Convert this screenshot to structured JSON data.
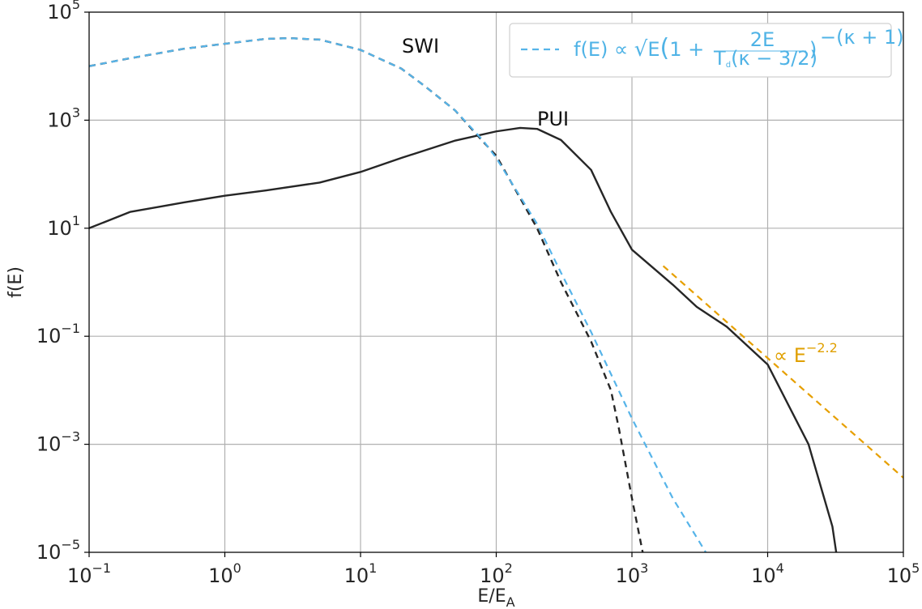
{
  "chart_data": {
    "type": "line",
    "title": "",
    "xlabel": "E/E",
    "xlabel_sub": "A",
    "ylabel": "f(E)",
    "xscale": "log",
    "yscale": "log",
    "xlim": [
      0.1,
      100000
    ],
    "ylim": [
      1e-05,
      100000
    ],
    "grid": true,
    "x_ticks": [
      {
        "base": "10",
        "exp": "−1"
      },
      {
        "base": "10",
        "exp": "0"
      },
      {
        "base": "10",
        "exp": "1"
      },
      {
        "base": "10",
        "exp": "2"
      },
      {
        "base": "10",
        "exp": "3"
      },
      {
        "base": "10",
        "exp": "4"
      },
      {
        "base": "10",
        "exp": "5"
      }
    ],
    "y_ticks": [
      {
        "base": "10",
        "exp": "5"
      },
      {
        "base": "10",
        "exp": "3"
      },
      {
        "base": "10",
        "exp": "1"
      },
      {
        "base": "10",
        "exp": "−1"
      },
      {
        "base": "10",
        "exp": "−3"
      },
      {
        "base": "10",
        "exp": "−5"
      }
    ],
    "colors": {
      "swi": "#262626",
      "pui": "#262626",
      "kappa_fit": "#56b4e9",
      "power_law": "#e69f00",
      "grid": "#b0b0b0",
      "axis": "#000000"
    },
    "legend": {
      "placement": "top-right",
      "text": "f(E) ∝ √E (1 + 2E / T_d(κ − 3/2))^−(κ + 1)",
      "parts": {
        "prefix": "f(E) ∝ ",
        "sqrt_arg": "E",
        "one_plus": "1 + ",
        "frac_num": "2E",
        "frac_den_main": "T",
        "frac_den_sub": "d",
        "frac_den_rest": "(κ − 3/2)",
        "exponent": "−(κ + 1)"
      }
    },
    "annotations": {
      "swi_label": "SWI",
      "pui_label": "PUI",
      "power_prefix": "∝ E",
      "power_exp": "−2.2"
    },
    "series": [
      {
        "name": "SWI",
        "style": "dashed",
        "points": [
          [
            0.1,
            10000
          ],
          [
            0.2,
            14000
          ],
          [
            0.5,
            21000
          ],
          [
            1,
            26000
          ],
          [
            2,
            32000
          ],
          [
            3,
            33000
          ],
          [
            5,
            31000
          ],
          [
            10,
            20000
          ],
          [
            20,
            9000
          ],
          [
            30,
            4200
          ],
          [
            50,
            1500
          ],
          [
            80,
            400
          ],
          [
            100,
            220
          ],
          [
            200,
            10
          ],
          [
            300,
            1.0
          ],
          [
            500,
            0.08
          ],
          [
            700,
            0.01
          ],
          [
            800,
            0.002
          ],
          [
            1000,
            0.0001
          ],
          [
            1200,
            1e-05
          ]
        ]
      },
      {
        "name": "PUI",
        "style": "solid",
        "points": [
          [
            0.1,
            10
          ],
          [
            0.2,
            20
          ],
          [
            0.5,
            30
          ],
          [
            1,
            40
          ],
          [
            2,
            50
          ],
          [
            5,
            70
          ],
          [
            10,
            110
          ],
          [
            20,
            200
          ],
          [
            50,
            420
          ],
          [
            100,
            620
          ],
          [
            150,
            720
          ],
          [
            200,
            690
          ],
          [
            300,
            430
          ],
          [
            500,
            120
          ],
          [
            700,
            20
          ],
          [
            1000,
            4
          ],
          [
            2000,
            0.9
          ],
          [
            3000,
            0.35
          ],
          [
            5000,
            0.15
          ],
          [
            10000,
            0.03
          ],
          [
            20000,
            0.001
          ],
          [
            30000,
            3e-05
          ],
          [
            32000,
            1e-05
          ]
        ]
      },
      {
        "name": "kappa_fit",
        "style": "dashed",
        "points": [
          [
            0.1,
            10000
          ],
          [
            0.2,
            14000
          ],
          [
            0.5,
            21000
          ],
          [
            1,
            26000
          ],
          [
            2,
            32000
          ],
          [
            3,
            33000
          ],
          [
            5,
            31000
          ],
          [
            10,
            20000
          ],
          [
            20,
            9000
          ],
          [
            30,
            4200
          ],
          [
            50,
            1500
          ],
          [
            80,
            420
          ],
          [
            100,
            200
          ],
          [
            200,
            12
          ],
          [
            300,
            1.5
          ],
          [
            500,
            0.12
          ],
          [
            1000,
            0.003
          ],
          [
            2000,
            0.0001
          ],
          [
            3500,
            1e-05
          ]
        ]
      },
      {
        "name": "power_law",
        "style": "dashed",
        "points": [
          [
            1700,
            2.0
          ],
          [
            100000,
            0.00024
          ]
        ]
      }
    ]
  }
}
